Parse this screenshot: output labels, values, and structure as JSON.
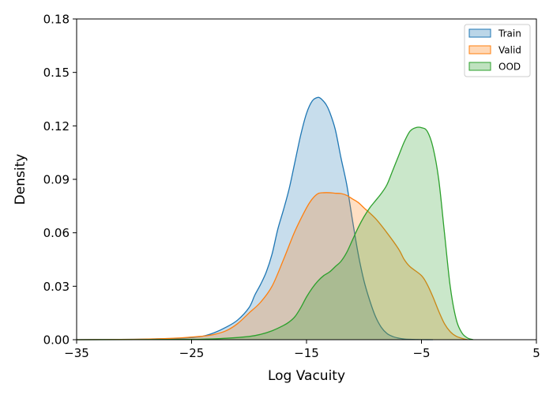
{
  "chart_data": {
    "type": "area",
    "title": "",
    "xlabel": "Log Vacuity",
    "ylabel": "Density",
    "xlim": [
      -35,
      5
    ],
    "ylim": [
      0,
      0.18
    ],
    "xticks": [
      -35,
      -25,
      -15,
      -5,
      5
    ],
    "xtick_labels": [
      "−35",
      "−25",
      "−15",
      "−5",
      "5"
    ],
    "yticks": [
      0,
      0.03,
      0.06,
      0.09,
      0.12,
      0.15,
      0.18
    ],
    "ytick_labels": [
      "0.00",
      "0.03",
      "0.06",
      "0.09",
      "0.12",
      "0.15",
      "0.18"
    ],
    "grid": false,
    "legend_position": "top-right",
    "series": [
      {
        "name": "Train",
        "line_color": "#1f77b4",
        "fill_color": "#1f77b4",
        "fill_opacity": 0.25,
        "x": [
          -35,
          -30,
          -28,
          -26,
          -25,
          -24,
          -23,
          -22,
          -21,
          -20,
          -19.5,
          -19,
          -18.5,
          -18,
          -17.5,
          -17,
          -16.5,
          -16,
          -15.5,
          -15,
          -14.5,
          -14,
          -13.7,
          -13.3,
          -13,
          -12.5,
          -12,
          -11.5,
          -11,
          -10.5,
          -10,
          -9.5,
          -9,
          -8.5,
          -8,
          -7.5,
          -7,
          -6.5,
          -6,
          -5.5,
          -5,
          -4
        ],
        "y": [
          0,
          0.0002,
          0.0005,
          0.0008,
          0.0012,
          0.002,
          0.004,
          0.007,
          0.011,
          0.018,
          0.025,
          0.031,
          0.038,
          0.048,
          0.062,
          0.073,
          0.085,
          0.1,
          0.115,
          0.127,
          0.134,
          0.136,
          0.135,
          0.132,
          0.128,
          0.118,
          0.102,
          0.087,
          0.067,
          0.048,
          0.033,
          0.022,
          0.013,
          0.007,
          0.0035,
          0.0018,
          0.0009,
          0.0004,
          0.0002,
          0.0001,
          5e-05,
          0
        ]
      },
      {
        "name": "Valid",
        "line_color": "#ff7f0e",
        "fill_color": "#ff7f0e",
        "fill_opacity": 0.25,
        "x": [
          -35,
          -30,
          -28,
          -26,
          -25,
          -24,
          -23,
          -22,
          -21,
          -20,
          -19,
          -18,
          -17,
          -16,
          -15,
          -14.5,
          -14,
          -13.5,
          -13,
          -12.5,
          -12,
          -11.5,
          -11,
          -10.5,
          -10,
          -9,
          -8,
          -7,
          -6.5,
          -6,
          -5,
          -4.5,
          -4,
          -3.5,
          -3,
          -2.5,
          -2,
          -1.5,
          -1
        ],
        "y": [
          0,
          0.0002,
          0.0005,
          0.001,
          0.0015,
          0.002,
          0.003,
          0.005,
          0.009,
          0.015,
          0.021,
          0.03,
          0.045,
          0.061,
          0.074,
          0.079,
          0.082,
          0.0825,
          0.0825,
          0.0822,
          0.082,
          0.081,
          0.079,
          0.077,
          0.074,
          0.068,
          0.06,
          0.051,
          0.045,
          0.041,
          0.036,
          0.031,
          0.024,
          0.016,
          0.009,
          0.0045,
          0.002,
          0.0008,
          0
        ]
      },
      {
        "name": "OOD",
        "line_color": "#2ca02c",
        "fill_color": "#2ca02c",
        "fill_opacity": 0.25,
        "x": [
          -35,
          -25,
          -22,
          -20,
          -19,
          -18,
          -17,
          -16.5,
          -16,
          -15.5,
          -15,
          -14.5,
          -14,
          -13.5,
          -13,
          -12.5,
          -12,
          -11.5,
          -11,
          -10.5,
          -10,
          -9.5,
          -9,
          -8.5,
          -8,
          -7.5,
          -7,
          -6.5,
          -6,
          -5.5,
          -5,
          -4.5,
          -4,
          -3.5,
          -3,
          -2.5,
          -2,
          -1.5,
          -1,
          -0.5
        ],
        "y": [
          0,
          0.0002,
          0.0008,
          0.0018,
          0.003,
          0.005,
          0.008,
          0.01,
          0.013,
          0.018,
          0.024,
          0.029,
          0.033,
          0.036,
          0.038,
          0.041,
          0.044,
          0.049,
          0.056,
          0.063,
          0.069,
          0.074,
          0.078,
          0.082,
          0.087,
          0.095,
          0.103,
          0.111,
          0.117,
          0.119,
          0.119,
          0.117,
          0.108,
          0.09,
          0.06,
          0.03,
          0.012,
          0.004,
          0.001,
          0
        ]
      }
    ]
  }
}
